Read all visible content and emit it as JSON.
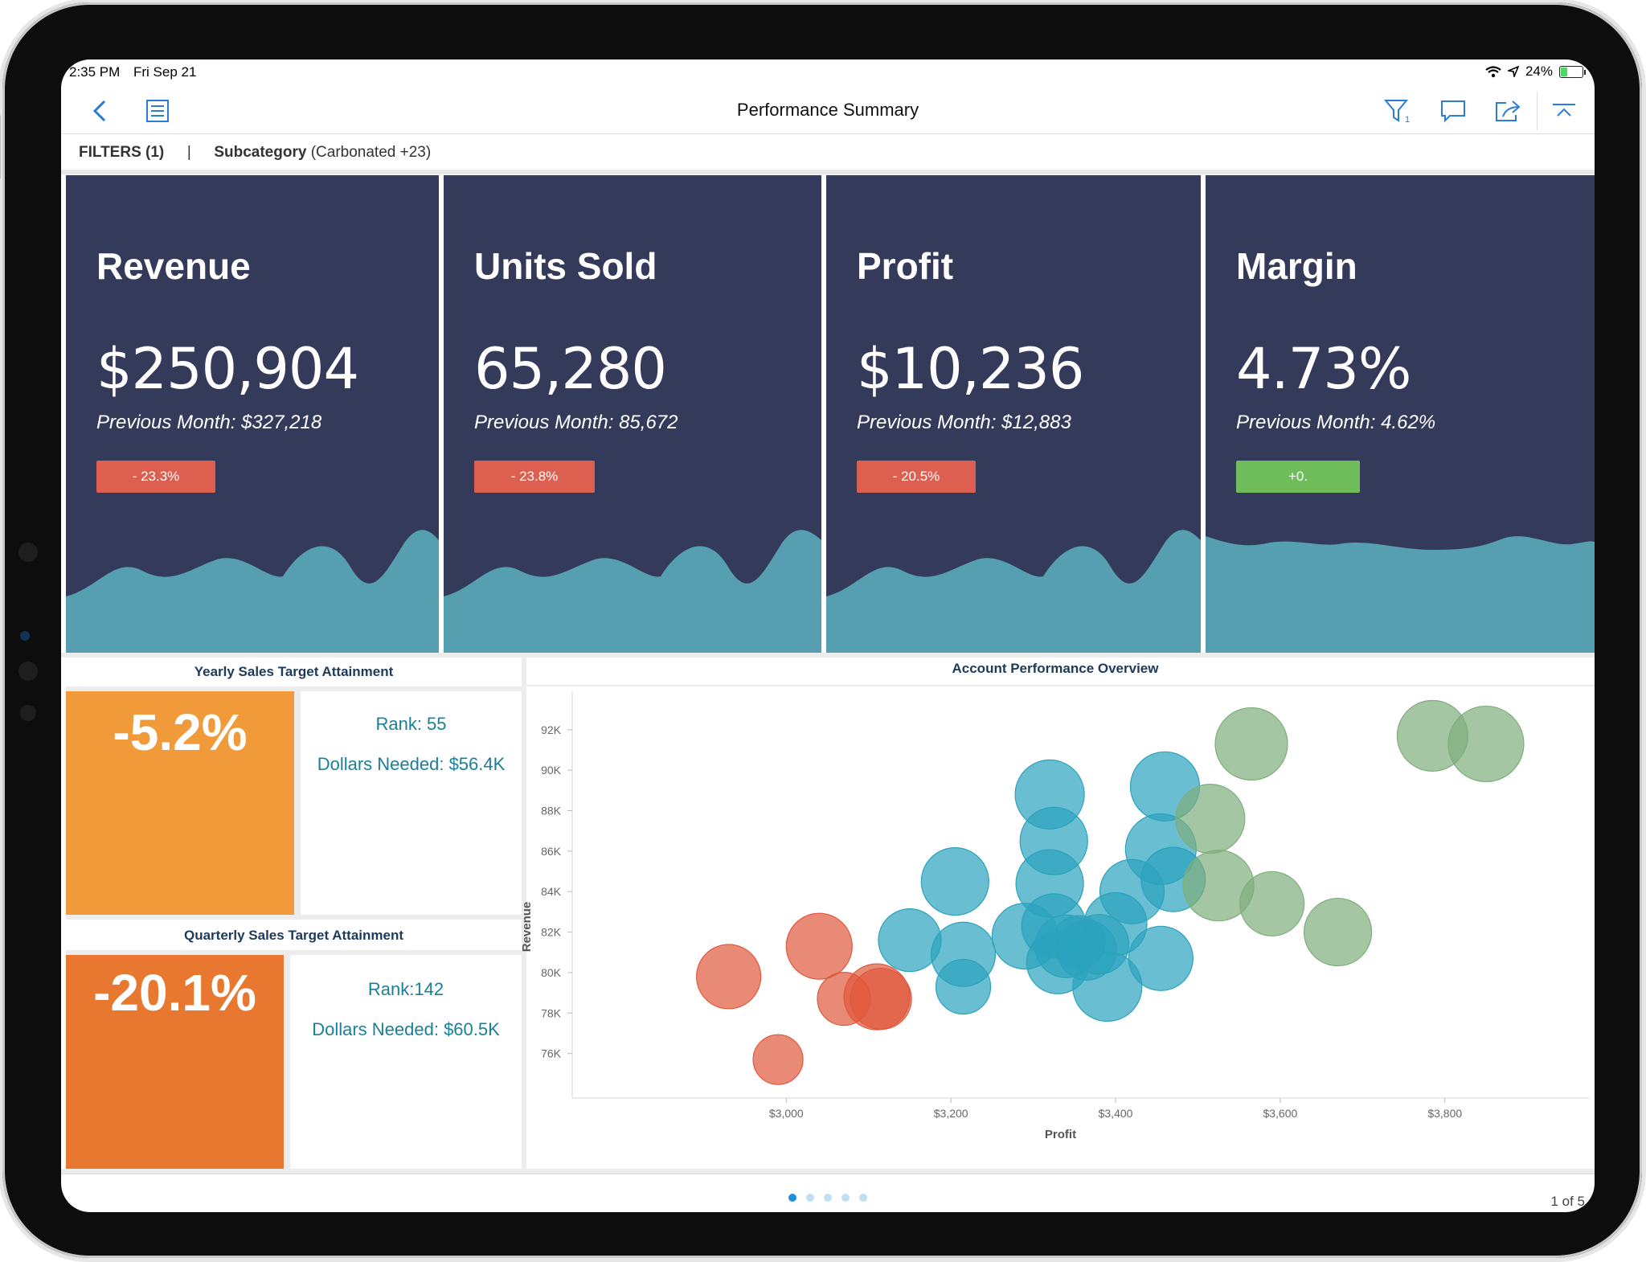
{
  "status_bar": {
    "time": "2:35 PM",
    "date": "Fri Sep 21",
    "battery": "24%"
  },
  "nav": {
    "title": "Performance Summary"
  },
  "filters": {
    "label": "FILTERS (1)",
    "separator": "|",
    "field": "Subcategory",
    "value": "(Carbonated +23)"
  },
  "kpis": [
    {
      "title": "Revenue",
      "value": "$250,904",
      "previous": "Previous Month: $327,218",
      "change": "- 23.3%",
      "change_color": "#dc5f50"
    },
    {
      "title": "Units Sold",
      "value": "65,280",
      "previous": "Previous Month: 85,672",
      "change": "- 23.8%",
      "change_color": "#dc5f50"
    },
    {
      "title": "Profit",
      "value": "$10,236",
      "previous": "Previous Month: $12,883",
      "change": "- 20.5%",
      "change_color": "#dc5f50"
    },
    {
      "title": "Margin",
      "value": "4.73%",
      "previous": "Previous Month: 4.62%",
      "change": "+0.",
      "change_color": "#6ebd5a"
    }
  ],
  "yearly": {
    "title": "Yearly Sales Target Attainment",
    "value": "-5.2%",
    "rank": "Rank: 55",
    "needed": "Dollars Needed: $56.4K",
    "color": "#f09a3a"
  },
  "quarterly": {
    "title": "Quarterly Sales Target Attainment",
    "value": "-20.1%",
    "rank": "Rank:142",
    "needed": "Dollars Needed: $60.5K",
    "color": "#e8772f"
  },
  "chart_data": {
    "type": "scatter",
    "title": "Account Performance Overview",
    "xlabel": "Profit",
    "ylabel": "Revenue",
    "xlim": [
      2740,
      3975
    ],
    "ylim": [
      73800,
      93900
    ],
    "x_ticks": [
      3000,
      3200,
      3400,
      3600,
      3800
    ],
    "x_tick_labels": [
      "$3,000",
      "$3,200",
      "$3,400",
      "$3,600",
      "$3,800"
    ],
    "y_ticks": [
      76000,
      78000,
      80000,
      82000,
      84000,
      86000,
      88000,
      90000,
      92000
    ],
    "y_tick_labels": [
      "76K",
      "78K",
      "80K",
      "82K",
      "84K",
      "86K",
      "88K",
      "90K",
      "92K"
    ],
    "colors": {
      "red": "#e0583c",
      "blue": "#2ba2bd",
      "green": "#7fae7c"
    },
    "series": [
      {
        "color": "red",
        "points": [
          [
            2930,
            79800,
            40
          ],
          [
            3040,
            81300,
            41
          ],
          [
            3070,
            78700,
            33
          ],
          [
            3110,
            78800,
            41
          ],
          [
            3115,
            78700,
            38
          ],
          [
            2990,
            75700,
            31
          ]
        ]
      },
      {
        "color": "blue",
        "points": [
          [
            3205,
            84500,
            42
          ],
          [
            3320,
            88800,
            43
          ],
          [
            3325,
            86500,
            42
          ],
          [
            3320,
            84400,
            42
          ],
          [
            3150,
            81600,
            39
          ],
          [
            3215,
            80900,
            40
          ],
          [
            3215,
            79300,
            34
          ],
          [
            3290,
            81800,
            41
          ],
          [
            3325,
            82300,
            40
          ],
          [
            3330,
            80500,
            39
          ],
          [
            3340,
            81300,
            39
          ],
          [
            3365,
            81100,
            37
          ],
          [
            3380,
            81400,
            37
          ],
          [
            3400,
            82400,
            39
          ],
          [
            3390,
            79300,
            43
          ],
          [
            3420,
            84000,
            40
          ],
          [
            3455,
            86100,
            44
          ],
          [
            3460,
            89200,
            43
          ],
          [
            3470,
            84600,
            40
          ],
          [
            3455,
            80700,
            40
          ],
          [
            3355,
            81500,
            33
          ]
        ]
      },
      {
        "color": "green",
        "points": [
          [
            3565,
            91300,
            45
          ],
          [
            3785,
            91700,
            44
          ],
          [
            3850,
            91300,
            47
          ],
          [
            3515,
            87600,
            43
          ],
          [
            3525,
            84300,
            44
          ],
          [
            3590,
            83400,
            40
          ],
          [
            3670,
            82000,
            42
          ]
        ]
      }
    ]
  },
  "footer": {
    "page": "1 of 5",
    "pages": 5,
    "active_page": 1
  }
}
